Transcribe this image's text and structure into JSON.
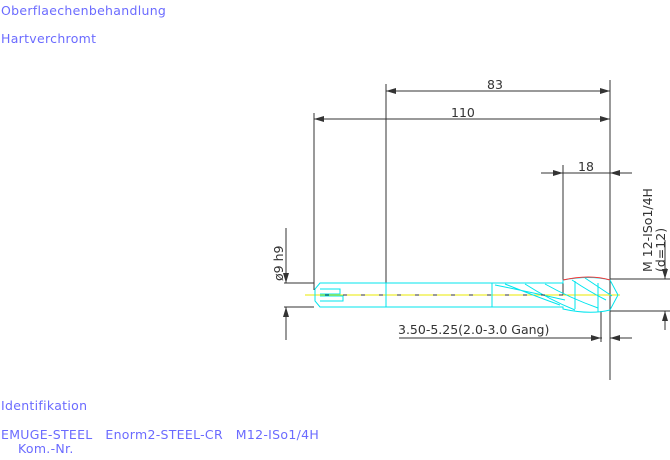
{
  "header": {
    "surface_label": "Oberflaechenbehandlung",
    "surface_value": "Hartverchromt"
  },
  "drawing": {
    "dim_overall_short": "83",
    "dim_overall_long": "110",
    "dim_thread_length": "18",
    "dim_shank_diameter": "ø9 h9",
    "thread_spec": "M 12-ISo1/4H",
    "thread_diameter": "(d=12)",
    "drill_range": "3.50-5.25(2.0-3.0 Gang)",
    "colors": {
      "tool_outline": "#00e5ee",
      "centerline": "#e8e800",
      "dimension": "#333333",
      "chamfer": "#ff3030",
      "label_text": "#6b6bff"
    }
  },
  "footer": {
    "ident_label": "Identifikation",
    "ident_value": "EMUGE-STEEL   Enorm2-STEEL-CR   M12-ISo1/4H",
    "kom_label": "Kom.-Nr."
  }
}
